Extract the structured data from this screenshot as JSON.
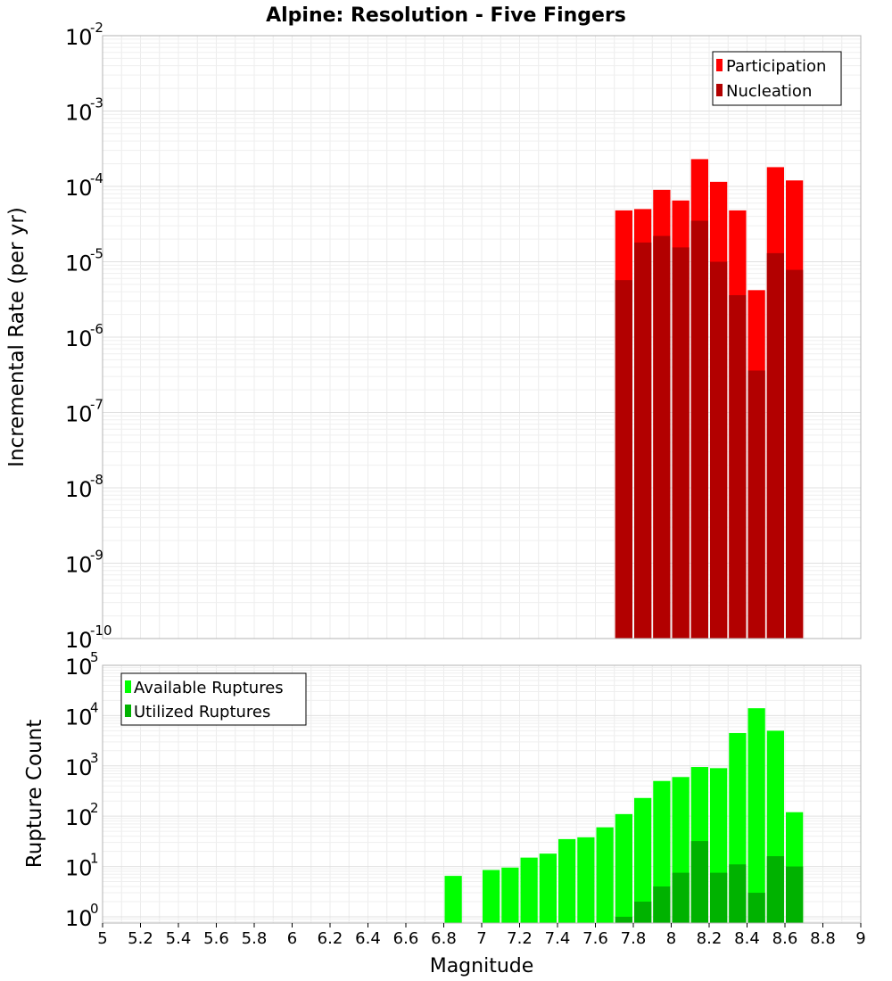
{
  "chart_data": [
    {
      "type": "bar",
      "title": "Alpine: Resolution - Five Fingers",
      "ylabel": "Incremental Rate (per yr)",
      "xlabel": "",
      "yscale": "log",
      "xlim": [
        5,
        9
      ],
      "ylim": [
        1e-10,
        0.01
      ],
      "grid": true,
      "legend_position": "top-right",
      "bin_width": 0.1,
      "series": [
        {
          "name": "Participation",
          "color": "#ff0000",
          "x": [
            7.75,
            7.85,
            7.95,
            8.05,
            8.15,
            8.25,
            8.35,
            8.45,
            8.55,
            8.65
          ],
          "values": [
            4.8e-05,
            5e-05,
            9e-05,
            6.5e-05,
            0.00023,
            0.000115,
            4.8e-05,
            4.2e-06,
            0.00018,
            0.00012
          ]
        },
        {
          "name": "Nucleation",
          "color": "#b20000",
          "x": [
            7.75,
            7.85,
            7.95,
            8.05,
            8.15,
            8.25,
            8.35,
            8.45,
            8.55,
            8.65
          ],
          "values": [
            5.7e-06,
            1.8e-05,
            2.2e-05,
            1.55e-05,
            3.5e-05,
            1e-05,
            3.6e-06,
            3.6e-07,
            1.3e-05,
            7.8e-06
          ]
        }
      ],
      "ytick_bases": [
        "10",
        "10",
        "10",
        "10",
        "10",
        "10",
        "10",
        "10",
        "10"
      ],
      "ytick_exps": [
        "-10",
        "-9",
        "-8",
        "-7",
        "-6",
        "-5",
        "-4",
        "-3",
        "-2"
      ]
    },
    {
      "type": "bar",
      "title": "",
      "ylabel": "Rupture Count",
      "xlabel": "Magnitude",
      "yscale": "log",
      "xlim": [
        5,
        9
      ],
      "ylim": [
        0.75,
        100000.0
      ],
      "grid": true,
      "legend_position": "top-left",
      "bin_width": 0.1,
      "series": [
        {
          "name": "Available Ruptures",
          "color": "#00ff00",
          "x": [
            6.85,
            7.05,
            7.15,
            7.25,
            7.35,
            7.45,
            7.55,
            7.65,
            7.75,
            7.85,
            7.95,
            8.05,
            8.15,
            8.25,
            8.35,
            8.45,
            8.55,
            8.65
          ],
          "values": [
            6.5,
            8.5,
            9.5,
            15,
            18,
            35,
            38,
            60,
            110,
            230,
            500,
            600,
            950,
            900,
            4500,
            14000,
            5000,
            120
          ]
        },
        {
          "name": "Utilized Ruptures",
          "color": "#00b200",
          "x": [
            7.75,
            7.85,
            7.95,
            8.05,
            8.15,
            8.25,
            8.35,
            8.45,
            8.55,
            8.65
          ],
          "values": [
            1,
            2,
            4,
            7.5,
            32,
            7.5,
            11,
            3,
            16,
            10
          ]
        }
      ],
      "xticks": [
        "5",
        "5.2",
        "5.4",
        "5.6",
        "5.8",
        "6",
        "6.2",
        "6.4",
        "6.6",
        "6.8",
        "7",
        "7.2",
        "7.4",
        "7.6",
        "7.8",
        "8",
        "8.2",
        "8.4",
        "8.6",
        "8.8",
        "9"
      ],
      "ytick_bases": [
        "10",
        "10",
        "10",
        "10",
        "10",
        "10"
      ],
      "ytick_exps": [
        "0",
        "1",
        "2",
        "3",
        "4",
        "5"
      ]
    }
  ]
}
